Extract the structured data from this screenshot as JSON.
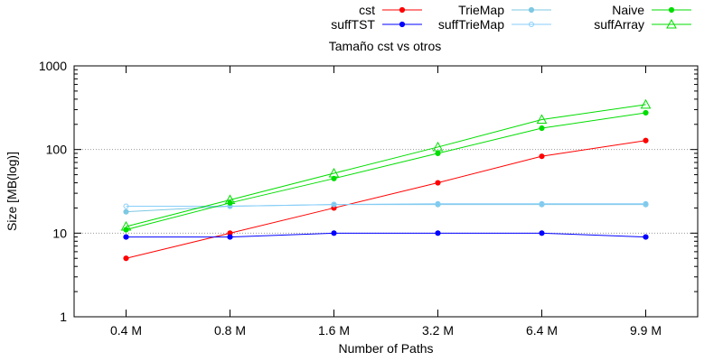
{
  "chart_data": {
    "type": "line",
    "title": "Tamaño cst vs otros",
    "xlabel": "Number of Paths",
    "ylabel": "Size [MB(log)]",
    "yscale": "log",
    "ylim": [
      1,
      1000
    ],
    "yticks": [
      "1",
      "10",
      "100",
      "1000"
    ],
    "grid": "horizontal-dotted",
    "legend_position": "top",
    "categories": [
      "0.4 M",
      "0.8 M",
      "1.6 M",
      "3.2 M",
      "6.4 M",
      "9.9 M"
    ],
    "series": [
      {
        "name": "cst",
        "color": "#ff0000",
        "marker": "filled-circle",
        "values": [
          5,
          10,
          20,
          40,
          83,
          128
        ]
      },
      {
        "name": "suffTST",
        "color": "#0000ff",
        "marker": "filled-circle",
        "values": [
          9,
          9,
          10,
          10,
          10,
          9
        ]
      },
      {
        "name": "TrieMap",
        "color": "#7ec8e3",
        "marker": "filled-circle",
        "values": [
          18,
          21,
          22,
          22,
          22,
          22
        ]
      },
      {
        "name": "suffTrieMap",
        "color": "#87cefa",
        "marker": "open-circle",
        "values": [
          21,
          21,
          22,
          22.5,
          22.5,
          22.5
        ]
      },
      {
        "name": "Naive",
        "color": "#00dd00",
        "marker": "filled-circle",
        "values": [
          11,
          23,
          45,
          90,
          180,
          275
        ]
      },
      {
        "name": "suffArray",
        "color": "#00dd00",
        "marker": "open-triangle",
        "values": [
          12,
          25,
          52,
          107,
          228,
          345
        ]
      }
    ]
  }
}
